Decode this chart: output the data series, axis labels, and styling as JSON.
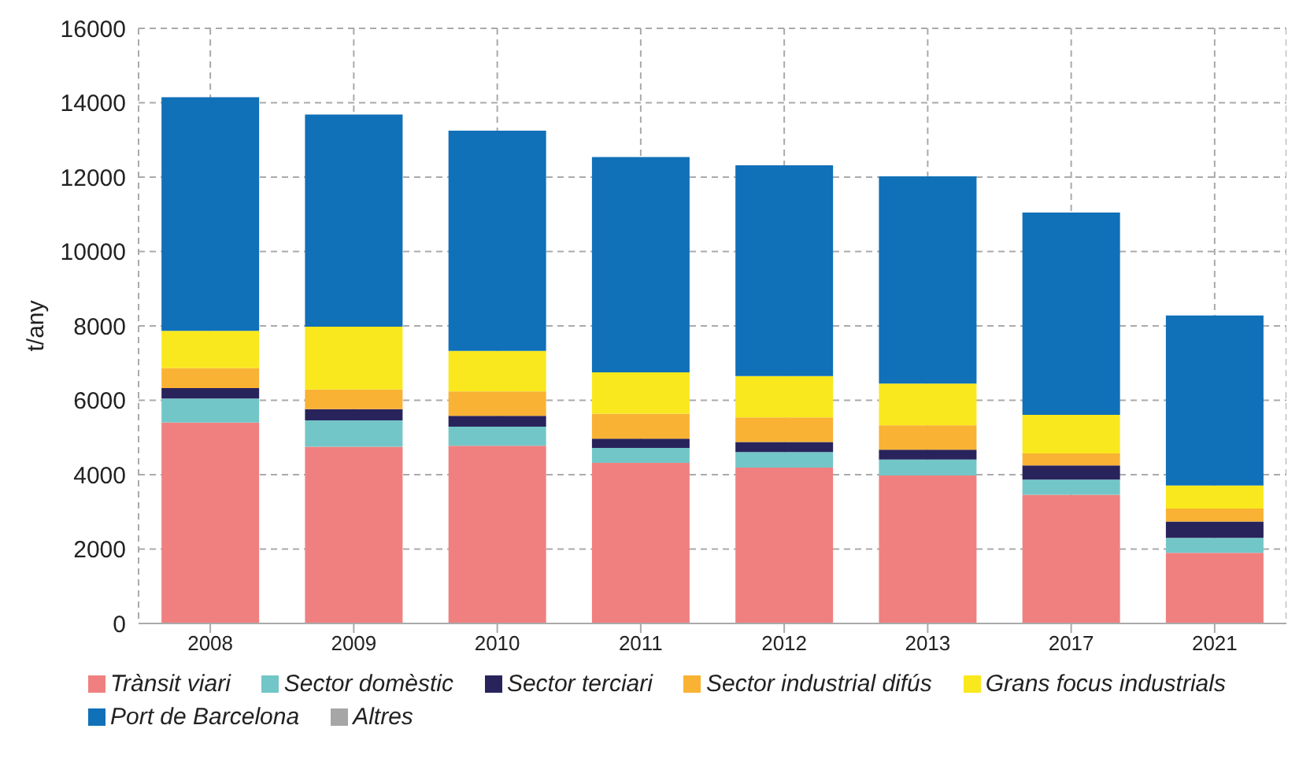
{
  "chart_data": {
    "type": "bar",
    "stacked": true,
    "ylabel": "t/any",
    "categories": [
      "2008",
      "2009",
      "2010",
      "2011",
      "2012",
      "2013",
      "2017",
      "2021"
    ],
    "series": [
      {
        "name": "Trànsit viari",
        "color": "#f08080",
        "values": [
          5400,
          4750,
          4780,
          4320,
          4190,
          3980,
          3460,
          1900
        ]
      },
      {
        "name": "Sector domèstic",
        "color": "#73c6c7",
        "values": [
          650,
          710,
          510,
          400,
          420,
          430,
          410,
          400
        ]
      },
      {
        "name": "Sector terciari",
        "color": "#29235c",
        "values": [
          280,
          300,
          290,
          250,
          270,
          260,
          380,
          440
        ]
      },
      {
        "name": "Sector industrial difús",
        "color": "#f9b233",
        "values": [
          540,
          530,
          660,
          670,
          660,
          660,
          320,
          350
        ]
      },
      {
        "name": "Grans focus industrials",
        "color": "#f9e81d",
        "values": [
          1000,
          1690,
          1090,
          1110,
          1110,
          1120,
          1040,
          620
        ]
      },
      {
        "name": "Port de Barcelona",
        "color": "#1070b8",
        "values": [
          6280,
          5700,
          5920,
          5790,
          5670,
          5570,
          5440,
          4570
        ]
      },
      {
        "name": "Altres",
        "color": "#a6a6a6",
        "values": [
          0,
          0,
          0,
          0,
          0,
          0,
          0,
          0
        ]
      }
    ],
    "ylim": [
      0,
      16000
    ],
    "yticks": [
      0,
      2000,
      4000,
      6000,
      8000,
      10000,
      12000,
      14000,
      16000
    ],
    "grid": true,
    "legend": "bottom"
  }
}
